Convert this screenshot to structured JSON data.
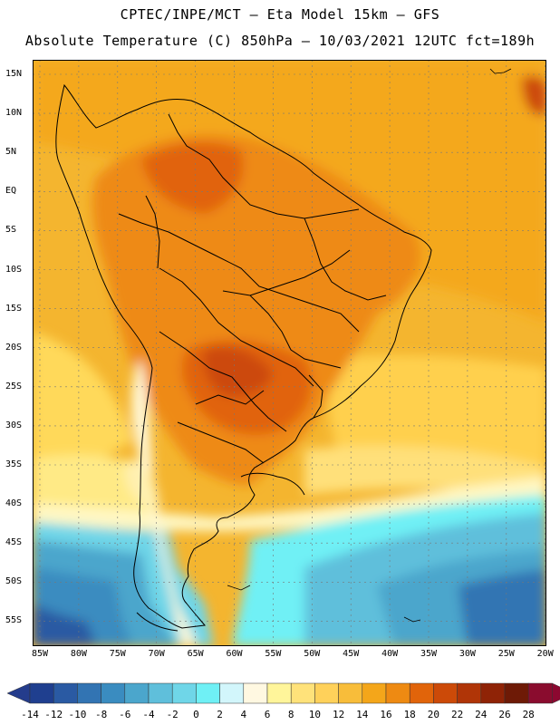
{
  "header": {
    "line1": "CPTEC/INPE/MCT –  Eta Model 15km – GFS",
    "line2": "Absolute Temperature (C) 850hPa – 10/03/2021 12UTC fct=189h"
  },
  "axes": {
    "lat_labels": [
      "15N",
      "10N",
      "5N",
      "EQ",
      "5S",
      "10S",
      "15S",
      "20S",
      "25S",
      "30S",
      "35S",
      "40S",
      "45S",
      "50S",
      "55S"
    ],
    "lon_labels": [
      "85W",
      "80W",
      "75W",
      "70W",
      "65W",
      "60W",
      "55W",
      "50W",
      "45W",
      "40W",
      "35W",
      "30W",
      "25W",
      "20W"
    ]
  },
  "colorbar": {
    "labels": [
      "-14",
      "-12",
      "-10",
      "-8",
      "-6",
      "-4",
      "-2",
      "0",
      "2",
      "4",
      "6",
      "8",
      "10",
      "12",
      "14",
      "16",
      "18",
      "20",
      "22",
      "24",
      "26",
      "28"
    ],
    "colors": [
      "#1f3f8f",
      "#2a5aa3",
      "#3274b3",
      "#3a8cc0",
      "#4ba6cc",
      "#5fbfdb",
      "#6fd6e8",
      "#6ff0f5",
      "#d2f6fb",
      "#fff8e1",
      "#fff59a",
      "#ffe27a",
      "#ffd15a",
      "#f8bd3a",
      "#f4a61a",
      "#ee8a12",
      "#e1640a",
      "#cc4a08",
      "#b03507",
      "#8f2306",
      "#6e1a06",
      "#8a0c2e"
    ],
    "under_color": "#243c8c",
    "over_color": "#8c0830"
  }
}
